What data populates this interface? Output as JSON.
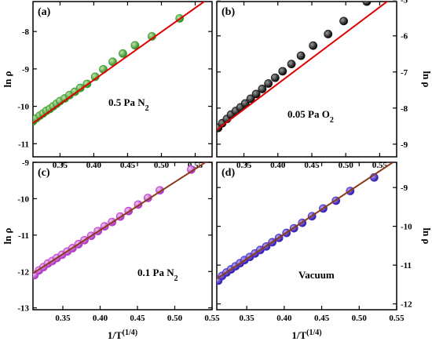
{
  "chart_data": [
    {
      "type": "scatter",
      "panel": "(a)",
      "annotation": "0.5 Pa N2",
      "ylabel": "ln ρ",
      "xlabel": "",
      "xlim": [
        0.31,
        0.575
      ],
      "ylim": [
        -11.35,
        -7.2
      ],
      "xticks": [
        0.35,
        0.4,
        0.45,
        0.5,
        0.55
      ],
      "yticks": [
        -11,
        -10,
        -9,
        -8
      ],
      "point_color": "#3a9c2e",
      "fit_color": "#e00000",
      "fit": {
        "x": [
          0.31,
          0.575
        ],
        "y": [
          -10.45,
          -7.05
        ]
      },
      "x": [
        0.31,
        0.315,
        0.32,
        0.325,
        0.33,
        0.335,
        0.34,
        0.345,
        0.35,
        0.357,
        0.364,
        0.372,
        0.38,
        0.39,
        0.402,
        0.414,
        0.428,
        0.443,
        0.461,
        0.486,
        0.527
      ],
      "y": [
        -10.4,
        -10.32,
        -10.25,
        -10.19,
        -10.12,
        -10.07,
        -10.0,
        -9.93,
        -9.86,
        -9.79,
        -9.7,
        -9.61,
        -9.51,
        -9.4,
        -9.21,
        -9.01,
        -8.81,
        -8.59,
        -8.37,
        -8.13,
        -7.65
      ]
    },
    {
      "type": "scatter",
      "panel": "(b)",
      "annotation": "0.05 Pa O2",
      "ylabel": "ln ρ",
      "xlabel": "",
      "xlim": [
        0.31,
        0.575
      ],
      "ylim": [
        -9.35,
        -5.05
      ],
      "xticks": [
        0.35,
        0.4,
        0.45,
        0.5,
        0.55
      ],
      "yticks": [
        -9,
        -8,
        -7,
        -6,
        -5
      ],
      "point_color": "#151515",
      "fit_color": "#e00000",
      "fit": {
        "x": [
          0.31,
          0.575
        ],
        "y": [
          -8.6,
          -4.85
        ]
      },
      "x": [
        0.312,
        0.318,
        0.325,
        0.331,
        0.338,
        0.345,
        0.352,
        0.36,
        0.368,
        0.377,
        0.386,
        0.396,
        0.407,
        0.42,
        0.434,
        0.452,
        0.474,
        0.497,
        0.531
      ],
      "y": [
        -8.55,
        -8.42,
        -8.3,
        -8.18,
        -8.08,
        -7.98,
        -7.87,
        -7.74,
        -7.61,
        -7.47,
        -7.32,
        -7.16,
        -6.98,
        -6.78,
        -6.55,
        -6.27,
        -5.95,
        -5.59,
        -5.05
      ]
    },
    {
      "type": "scatter",
      "panel": "(c)",
      "annotation": "0.1 Pa N2",
      "ylabel": "ln ρ",
      "xlabel": "1/T(1/4)",
      "xlim": [
        0.31,
        0.55
      ],
      "ylim": [
        -13.05,
        -9.0
      ],
      "xticks": [
        0.35,
        0.4,
        0.45,
        0.5,
        0.55
      ],
      "yticks": [
        -13,
        -12,
        -11,
        -10,
        -9
      ],
      "point_color": "#c33fd0",
      "fit_color": "#8b3a1a",
      "fit": {
        "x": [
          0.31,
          0.545
        ],
        "y": [
          -12.05,
          -8.95
        ]
      },
      "x": [
        0.312,
        0.318,
        0.324,
        0.33,
        0.336,
        0.342,
        0.349,
        0.356,
        0.363,
        0.371,
        0.379,
        0.388,
        0.397,
        0.406,
        0.416,
        0.427,
        0.438,
        0.451,
        0.464,
        0.48,
        0.522
      ],
      "y": [
        -12.1,
        -11.97,
        -11.88,
        -11.78,
        -11.71,
        -11.63,
        -11.54,
        -11.45,
        -11.36,
        -11.25,
        -11.14,
        -11.02,
        -10.89,
        -10.76,
        -10.64,
        -10.49,
        -10.34,
        -10.16,
        -9.98,
        -9.77,
        -9.2
      ]
    },
    {
      "type": "scatter",
      "panel": "(d)",
      "annotation": "Vacuum",
      "ylabel": "ln ρ",
      "xlabel": "1/T(1/4)",
      "xlim": [
        0.31,
        0.55
      ],
      "ylim": [
        -12.15,
        -8.35
      ],
      "xticks": [
        0.35,
        0.4,
        0.45,
        0.5,
        0.55
      ],
      "yticks": [
        -12,
        -11,
        -10,
        -9
      ],
      "point_color": "#4d2fc9",
      "fit_color": "#8b3a1a",
      "fit": {
        "x": [
          0.31,
          0.545
        ],
        "y": [
          -11.35,
          -8.35
        ]
      },
      "x": [
        0.312,
        0.317,
        0.323,
        0.329,
        0.335,
        0.341,
        0.347,
        0.354,
        0.361,
        0.368,
        0.376,
        0.384,
        0.393,
        0.403,
        0.413,
        0.424,
        0.437,
        0.452,
        0.469,
        0.488,
        0.52
      ],
      "y": [
        -11.4,
        -11.28,
        -11.19,
        -11.11,
        -11.03,
        -10.95,
        -10.87,
        -10.79,
        -10.7,
        -10.61,
        -10.52,
        -10.41,
        -10.3,
        -10.17,
        -10.05,
        -9.91,
        -9.74,
        -9.54,
        -9.34,
        -9.09,
        -8.74
      ]
    }
  ]
}
